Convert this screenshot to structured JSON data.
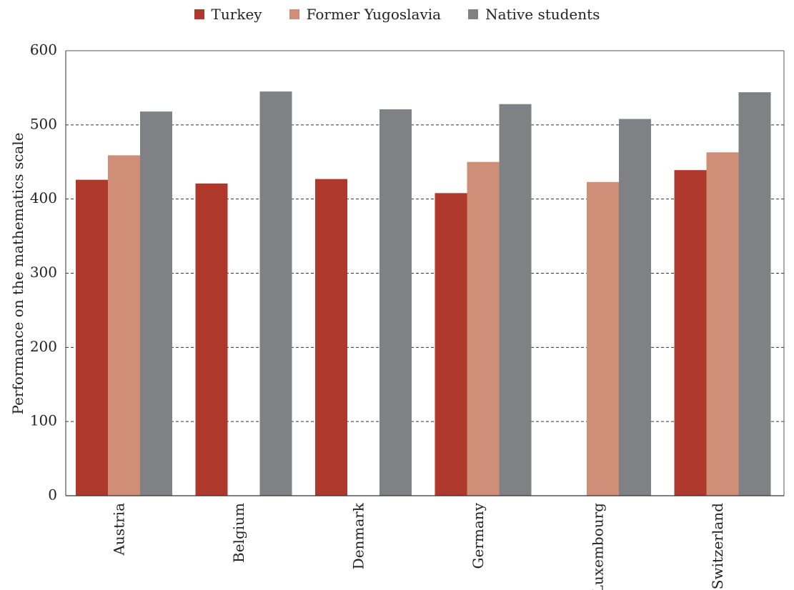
{
  "chart_data": {
    "type": "bar",
    "categories": [
      "Austria",
      "Belgium",
      "Denmark",
      "Germany",
      "Luxembourg",
      "Switzerland"
    ],
    "series": [
      {
        "name": "Turkey",
        "color": "#AE382B",
        "values": [
          426,
          421,
          427,
          408,
          null,
          439
        ]
      },
      {
        "name": "Former Yugoslavia",
        "color": "#CF8E77",
        "values": [
          459,
          null,
          null,
          450,
          423,
          463
        ]
      },
      {
        "name": "Native students",
        "color": "#808184",
        "values": [
          518,
          545,
          521,
          528,
          508,
          544
        ]
      }
    ],
    "title": "",
    "xlabel": "",
    "ylabel": "Performance on the mathematics scale",
    "ylim": [
      0,
      600
    ],
    "yticks": [
      0,
      100,
      200,
      300,
      400,
      500,
      600
    ],
    "grid": "dashed horizontal",
    "legend": "top-center"
  }
}
